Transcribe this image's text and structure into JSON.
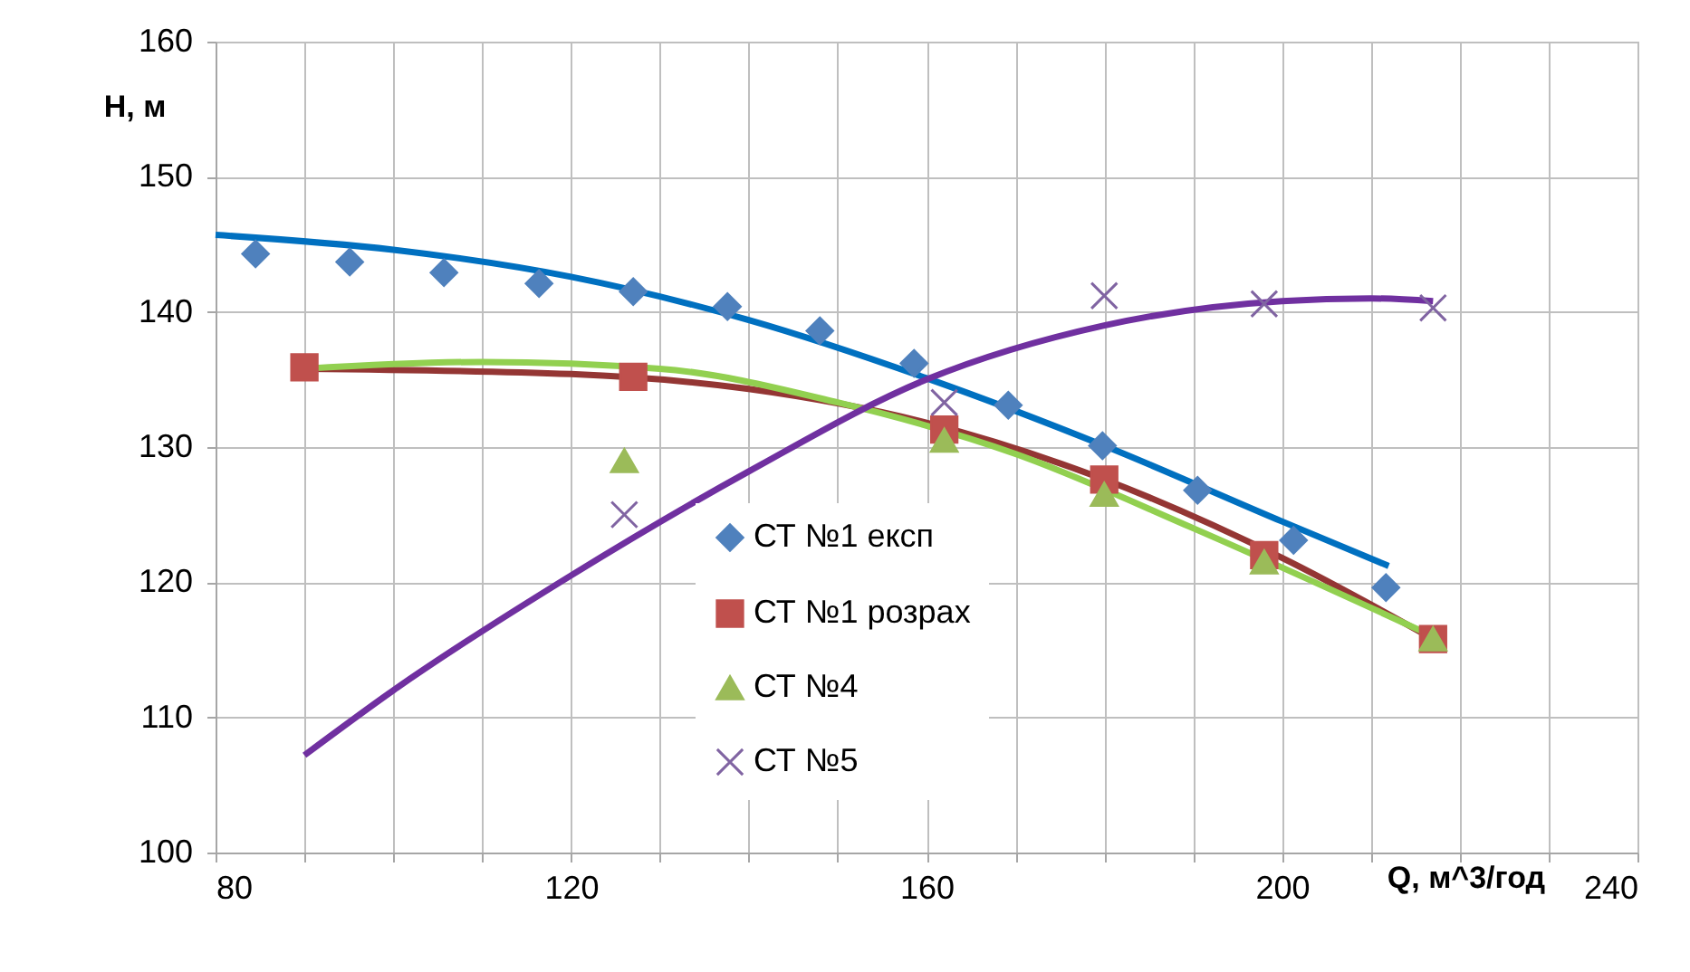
{
  "chart_data": {
    "type": "scatter",
    "xlabel": "Q, м^3/год",
    "ylabel": "H, м",
    "xlim": [
      80,
      240
    ],
    "ylim": [
      100,
      160
    ],
    "xticks": [
      80,
      {
        "value": 90,
        "label": null
      },
      {
        "value": 100,
        "label": null
      },
      {
        "value": 110,
        "label": null
      },
      120,
      {
        "value": 130,
        "label": null
      },
      {
        "value": 140,
        "label": null
      },
      {
        "value": 150,
        "label": null
      },
      160,
      {
        "value": 170,
        "label": null
      },
      {
        "value": 180,
        "label": null
      },
      {
        "value": 190,
        "label": null
      },
      200,
      {
        "value": 210,
        "label": null
      },
      {
        "value": 220,
        "label": null
      },
      {
        "value": 230,
        "label": null
      },
      240
    ],
    "yticks": [
      100,
      110,
      120,
      130,
      140,
      150,
      160
    ],
    "grid": true,
    "legend": "bottom",
    "series": [
      {
        "type": "line",
        "color": "#0070c0",
        "marker": "none",
        "x": [
          80,
          100,
          120,
          140,
          160,
          180,
          200,
          212
        ],
        "values": [
          145.7,
          144.6,
          142.6,
          139.4,
          135.1,
          130.1,
          124.5,
          121.2
        ]
      },
      {
        "type": "line",
        "color": "#943634",
        "marker": "none",
        "x": [
          90,
          120,
          140,
          160,
          180,
          200,
          217
        ],
        "values": [
          135.8,
          135.4,
          134.3,
          131.8,
          127.6,
          121.8,
          115.8
        ]
      },
      {
        "type": "line",
        "color": "#92d050",
        "marker": "none",
        "x": [
          90,
          110,
          130,
          150,
          170,
          190,
          217
        ],
        "values": [
          135.8,
          136.3,
          135.8,
          133.3,
          129.5,
          124,
          116
        ]
      },
      {
        "type": "line",
        "color": "#7030a0",
        "marker": "none",
        "x": [
          90,
          100,
          120,
          140,
          160,
          180,
          200,
          210,
          217
        ],
        "values": [
          107.2,
          112,
          120.5,
          128.2,
          135,
          139,
          140.8,
          141,
          140.8
        ]
      },
      {
        "type": "scatter",
        "name": "СТ №1 експ",
        "color": "#4f81bd",
        "marker": "diamond",
        "x": [
          84.5,
          95.1,
          105.7,
          116.4,
          127,
          137.6,
          148,
          158.6,
          169.2,
          179.8,
          190.5,
          201.3,
          211.7
        ],
        "values": [
          144.3,
          143.7,
          142.9,
          142.1,
          141.5,
          140.4,
          138.6,
          136.2,
          133.1,
          130.1,
          126.8,
          123.1,
          119.6
        ]
      },
      {
        "type": "scatter",
        "name": "СТ №1 розрах",
        "color": "#c0504d",
        "marker": "square",
        "x": [
          90,
          127,
          162,
          180,
          198,
          217
        ],
        "values": [
          135.9,
          135.2,
          131.3,
          127.6,
          122,
          115.8
        ]
      },
      {
        "type": "scatter",
        "name": "СТ №4",
        "color": "#9bbb59",
        "marker": "triangle",
        "x": [
          126,
          162,
          180,
          198,
          217
        ],
        "values": [
          129,
          130.5,
          126.5,
          121.5,
          115.8
        ]
      },
      {
        "type": "scatter",
        "name": "СТ №5",
        "color": "#8064a2",
        "marker": "cross",
        "x": [
          126,
          162,
          180,
          198,
          217
        ],
        "values": [
          125,
          133.3,
          141.2,
          140.6,
          140.3
        ]
      }
    ]
  }
}
